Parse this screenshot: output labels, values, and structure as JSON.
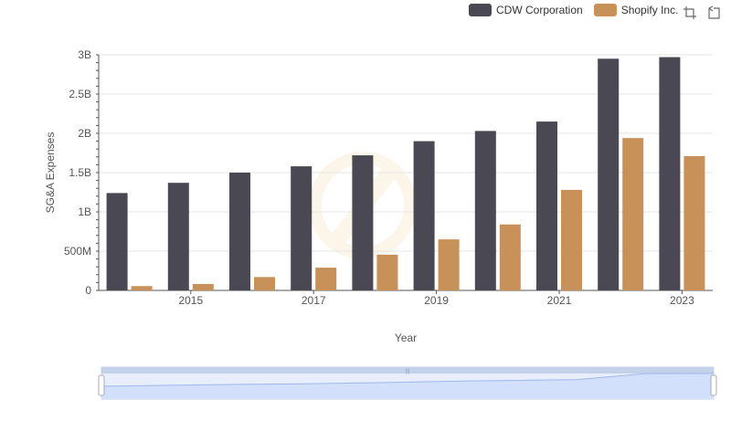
{
  "chart_data": {
    "type": "bar",
    "xlabel": "Year",
    "ylabel": "SG&A Expenses",
    "ylim": [
      0,
      3000000000
    ],
    "x": [
      2014,
      2015,
      2016,
      2017,
      2018,
      2019,
      2020,
      2021,
      2022,
      2023
    ],
    "x_tick_labels": [
      "2015",
      "2017",
      "2019",
      "2021",
      "2023"
    ],
    "y_tick_labels": [
      "0",
      "500M",
      "1B",
      "1.5B",
      "2B",
      "2.5B",
      "3B"
    ],
    "grid": true,
    "legend_position": "top-right",
    "series": [
      {
        "name": "CDW Corporation",
        "color": "#494853",
        "values": [
          1240000000,
          1370000000,
          1500000000,
          1580000000,
          1720000000,
          1900000000,
          2030000000,
          2150000000,
          2950000000,
          2970000000
        ]
      },
      {
        "name": "Shopify Inc.",
        "color": "#c8915a",
        "values": [
          55000000,
          82000000,
          170000000,
          290000000,
          455000000,
          650000000,
          840000000,
          1280000000,
          1940000000,
          1710000000
        ]
      }
    ]
  },
  "toolbar": {
    "zoom_icon": "crop-zoom-icon",
    "reset_icon": "restore-icon"
  }
}
